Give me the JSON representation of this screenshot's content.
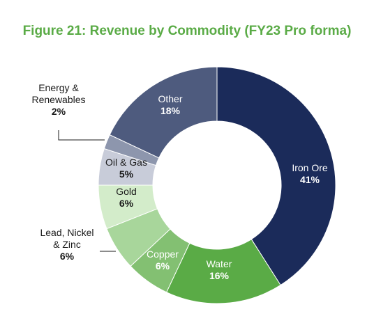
{
  "chart_data": {
    "type": "pie",
    "title": "Figure 21: Revenue by Commodity (FY23 Pro forma)",
    "donut": true,
    "slices": [
      {
        "name_lines": [
          "Iron Ore"
        ],
        "value": 41,
        "value_label": "41%",
        "color": "#1b2b5a",
        "label_color": "#ffffff",
        "label_placement": "inside"
      },
      {
        "name_lines": [
          "Water"
        ],
        "value": 16,
        "value_label": "16%",
        "color": "#5aab46",
        "label_color": "#ffffff",
        "label_placement": "inside"
      },
      {
        "name_lines": [
          "Copper"
        ],
        "value": 6,
        "value_label": "6%",
        "color": "#83c072",
        "label_color": "#ffffff",
        "label_placement": "inside"
      },
      {
        "name_lines": [
          "Lead, Nickel",
          "& Zinc"
        ],
        "value": 6,
        "value_label": "6%",
        "color": "#a8d69b",
        "label_color": "#1a1a1a",
        "label_placement": "outside-left"
      },
      {
        "name_lines": [
          "Gold"
        ],
        "value": 6,
        "value_label": "6%",
        "color": "#d3ecca",
        "label_color": "#1a1a1a",
        "label_placement": "inside"
      },
      {
        "name_lines": [
          "Oil & Gas"
        ],
        "value": 5,
        "value_label": "5%",
        "color": "#c8ccd9",
        "label_color": "#1a1a1a",
        "label_placement": "inside"
      },
      {
        "name_lines": [
          "Energy &",
          "Renewables"
        ],
        "value": 2,
        "value_label": "2%",
        "color": "#8d96ad",
        "label_color": "#1a1a1a",
        "label_placement": "outside-left"
      },
      {
        "name_lines": [
          "Other"
        ],
        "value": 18,
        "value_label": "18%",
        "color": "#4e5b7e",
        "label_color": "#ffffff",
        "label_placement": "inside"
      }
    ]
  }
}
